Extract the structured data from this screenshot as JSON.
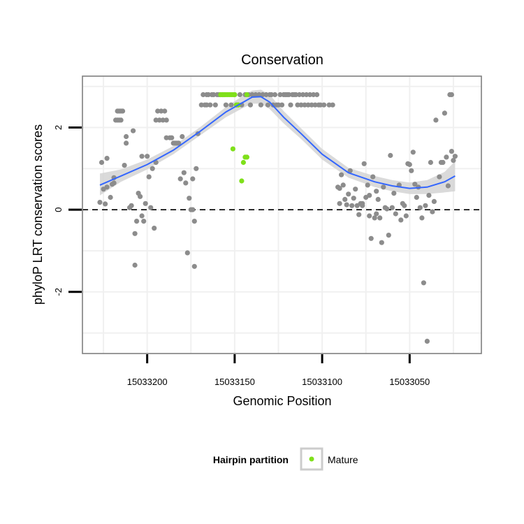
{
  "chart_data": {
    "type": "scatter",
    "title": "Conservation",
    "xlabel": "Genomic Position",
    "ylabel": "phyloP LRT conservation scores",
    "x_reversed": true,
    "xlim": [
      15033237,
      15033009
    ],
    "ylim": [
      -3.5,
      3.25
    ],
    "x_ticks": [
      15033200,
      15033150,
      15033100,
      15033050
    ],
    "y_ticks": [
      -2,
      0,
      2
    ],
    "reference_line": {
      "y": 0,
      "style": "dashed"
    },
    "grid": true,
    "legend": {
      "title": "Hairpin partition",
      "placement": "bottom",
      "entries": [
        "Mature"
      ]
    },
    "colors": {
      "other_points": "#8c8c8c",
      "mature_points": "#7fe01a",
      "smooth_line": "#3366ff",
      "confidence_band": "#d3d3d3",
      "panel_border": "#7f7f7f"
    },
    "series": [
      {
        "points": [
          [
            15033227,
            0.18
          ],
          [
            15033226,
            1.15
          ],
          [
            15033225,
            0.5
          ],
          [
            15033224,
            0.14
          ],
          [
            15033223,
            0.55
          ],
          [
            15033223,
            1.25
          ],
          [
            15033221,
            0.3
          ],
          [
            15033220,
            0.62
          ],
          [
            15033219,
            0.78
          ],
          [
            15033219,
            0.65
          ],
          [
            15033218,
            2.18
          ],
          [
            15033217,
            2.4
          ],
          [
            15033217,
            2.18
          ],
          [
            15033216,
            2.4
          ],
          [
            15033216,
            2.18
          ],
          [
            15033215,
            2.4
          ],
          [
            15033215,
            2.18
          ],
          [
            15033214,
            2.4
          ],
          [
            15033213,
            1.08
          ],
          [
            15033212,
            1.62
          ],
          [
            15033212,
            1.78
          ],
          [
            15033210,
            0.05
          ],
          [
            15033209,
            0.1
          ],
          [
            15033208,
            1.92
          ],
          [
            15033207,
            -1.35
          ],
          [
            15033207,
            -0.58
          ],
          [
            15033206,
            -0.28
          ],
          [
            15033205,
            0.4
          ],
          [
            15033204,
            0.32
          ],
          [
            15033203,
            -0.15
          ],
          [
            15033203,
            1.3
          ],
          [
            15033202,
            -0.28
          ],
          [
            15033201,
            0.15
          ],
          [
            15033200,
            1.3
          ],
          [
            15033199,
            0.8
          ],
          [
            15033198,
            0.05
          ],
          [
            15033197,
            1.0
          ],
          [
            15033196,
            -0.45
          ],
          [
            15033195,
            2.18
          ],
          [
            15033195,
            1.15
          ],
          [
            15033194,
            2.4
          ],
          [
            15033193,
            2.18
          ],
          [
            15033192,
            2.4
          ],
          [
            15033191,
            2.18
          ],
          [
            15033190,
            2.4
          ],
          [
            15033189,
            2.18
          ],
          [
            15033189,
            1.75
          ],
          [
            15033187,
            1.75
          ],
          [
            15033186,
            1.75
          ],
          [
            15033185,
            1.62
          ],
          [
            15033184,
            1.62
          ],
          [
            15033183,
            1.62
          ],
          [
            15033182,
            1.62
          ],
          [
            15033181,
            0.75
          ],
          [
            15033180,
            1.78
          ],
          [
            15033179,
            0.9
          ],
          [
            15033178,
            0.65
          ],
          [
            15033177,
            -1.05
          ],
          [
            15033176,
            0.28
          ],
          [
            15033175,
            0.0
          ],
          [
            15033174,
            0.75
          ],
          [
            15033174,
            0.0
          ],
          [
            15033173,
            -1.38
          ],
          [
            15033173,
            -0.28
          ],
          [
            15033172,
            1.0
          ],
          [
            15033171,
            1.85
          ],
          [
            15033169,
            2.55
          ],
          [
            15033168,
            2.8
          ],
          [
            15033167,
            2.55
          ],
          [
            15033166,
            2.8
          ],
          [
            15033166,
            2.55
          ],
          [
            15033165,
            2.8
          ],
          [
            15033164,
            2.55
          ],
          [
            15033163,
            2.8
          ],
          [
            15033162,
            2.8
          ],
          [
            15033161,
            2.55
          ],
          [
            15033160,
            2.8
          ],
          [
            15033159,
            2.8
          ],
          [
            15033158,
            2.8
          ],
          [
            15033157,
            2.8
          ],
          [
            15033156,
            2.8
          ],
          [
            15033155,
            2.55
          ],
          [
            15033152,
            2.55
          ],
          [
            15033150,
            2.8
          ],
          [
            15033149,
            2.55
          ],
          [
            15033148,
            2.55
          ],
          [
            15033147,
            2.8
          ],
          [
            15033146,
            2.55
          ],
          [
            15033144,
            2.8
          ],
          [
            15033142,
            2.8
          ],
          [
            15033141,
            2.55
          ],
          [
            15033140,
            2.8
          ],
          [
            15033138,
            2.8
          ],
          [
            15033136,
            2.8
          ],
          [
            15033135,
            2.55
          ],
          [
            15033134,
            2.8
          ],
          [
            15033132,
            2.8
          ],
          [
            15033131,
            2.55
          ],
          [
            15033130,
            2.8
          ],
          [
            15033129,
            2.8
          ],
          [
            15033128,
            2.55
          ],
          [
            15033127,
            2.8
          ],
          [
            15033126,
            2.55
          ],
          [
            15033125,
            2.55
          ],
          [
            15033124,
            2.8
          ],
          [
            15033123,
            2.55
          ],
          [
            15033122,
            2.8
          ],
          [
            15033121,
            2.8
          ],
          [
            15033120,
            2.8
          ],
          [
            15033119,
            2.8
          ],
          [
            15033118,
            2.55
          ],
          [
            15033117,
            2.8
          ],
          [
            15033116,
            2.8
          ],
          [
            15033115,
            2.8
          ],
          [
            15033114,
            2.55
          ],
          [
            15033113,
            2.8
          ],
          [
            15033112,
            2.55
          ],
          [
            15033111,
            2.8
          ],
          [
            15033110,
            2.55
          ],
          [
            15033109,
            2.8
          ],
          [
            15033108,
            2.55
          ],
          [
            15033107,
            2.8
          ],
          [
            15033106,
            2.55
          ],
          [
            15033105,
            2.8
          ],
          [
            15033104,
            2.55
          ],
          [
            15033103,
            2.8
          ],
          [
            15033102,
            2.55
          ],
          [
            15033101,
            2.55
          ],
          [
            15033099,
            2.55
          ],
          [
            15033096,
            2.55
          ],
          [
            15033094,
            2.55
          ],
          [
            15033091,
            0.55
          ],
          [
            15033090,
            0.15
          ],
          [
            15033090,
            0.52
          ],
          [
            15033089,
            0.85
          ],
          [
            15033088,
            0.6
          ],
          [
            15033087,
            0.25
          ],
          [
            15033086,
            0.12
          ],
          [
            15033085,
            0.38
          ],
          [
            15033084,
            0.95
          ],
          [
            15033083,
            0.1
          ],
          [
            15033082,
            0.28
          ],
          [
            15033081,
            0.5
          ],
          [
            15033080,
            0.1
          ],
          [
            15033079,
            -0.12
          ],
          [
            15033078,
            0.15
          ],
          [
            15033077,
            0.15
          ],
          [
            15033077,
            0.1
          ],
          [
            15033076,
            1.12
          ],
          [
            15033075,
            0.3
          ],
          [
            15033074,
            0.6
          ],
          [
            15033073,
            -0.15
          ],
          [
            15033073,
            0.35
          ],
          [
            15033072,
            -0.7
          ],
          [
            15033071,
            0.8
          ],
          [
            15033070,
            -0.2
          ],
          [
            15033069,
            0.45
          ],
          [
            15033069,
            -0.1
          ],
          [
            15033068,
            0.25
          ],
          [
            15033067,
            -0.2
          ],
          [
            15033066,
            -0.8
          ],
          [
            15033065,
            0.55
          ],
          [
            15033064,
            0.05
          ],
          [
            15033063,
            0.02
          ],
          [
            15033062,
            -0.62
          ],
          [
            15033061,
            1.32
          ],
          [
            15033060,
            0.05
          ],
          [
            15033059,
            0.4
          ],
          [
            15033058,
            -0.1
          ],
          [
            15033056,
            0.6
          ],
          [
            15033055,
            -0.25
          ],
          [
            15033054,
            0.15
          ],
          [
            15033053,
            0.1
          ],
          [
            15033052,
            -0.15
          ],
          [
            15033051,
            1.12
          ],
          [
            15033050,
            1.1
          ],
          [
            15033049,
            0.95
          ],
          [
            15033048,
            1.4
          ],
          [
            15033047,
            0.62
          ],
          [
            15033046,
            0.3
          ],
          [
            15033045,
            0.55
          ],
          [
            15033044,
            0.05
          ],
          [
            15033043,
            -0.2
          ],
          [
            15033042,
            -1.78
          ],
          [
            15033041,
            0.1
          ],
          [
            15033040,
            -3.2
          ],
          [
            15033039,
            0.35
          ],
          [
            15033038,
            1.15
          ],
          [
            15033037,
            -0.05
          ],
          [
            15033036,
            0.2
          ],
          [
            15033035,
            2.18
          ],
          [
            15033033,
            0.8
          ],
          [
            15033032,
            1.15
          ],
          [
            15033031,
            1.15
          ],
          [
            15033030,
            2.35
          ],
          [
            15033029,
            1.28
          ],
          [
            15033028,
            0.58
          ],
          [
            15033027,
            2.8
          ],
          [
            15033026,
            2.8
          ],
          [
            15033026,
            1.42
          ],
          [
            15033025,
            1.2
          ],
          [
            15033024,
            1.3
          ]
        ]
      },
      {
        "name": "Mature",
        "points": [
          [
            15033158,
            2.8
          ],
          [
            15033157,
            2.8
          ],
          [
            15033156,
            2.8
          ],
          [
            15033155,
            2.8
          ],
          [
            15033154,
            2.8
          ],
          [
            15033153,
            2.8
          ],
          [
            15033152,
            2.8
          ],
          [
            15033151,
            2.8
          ],
          [
            15033150,
            2.8
          ],
          [
            15033149,
            2.55
          ],
          [
            15033148,
            2.55
          ],
          [
            15033143,
            2.8
          ],
          [
            15033151,
            1.48
          ],
          [
            15033146,
            0.7
          ],
          [
            15033145,
            1.15
          ],
          [
            15033144,
            1.28
          ],
          [
            15033143,
            1.28
          ]
        ]
      }
    ],
    "smooth": {
      "x": [
        15033227,
        15033215,
        15033200,
        15033185,
        15033170,
        15033155,
        15033145,
        15033140,
        15033135,
        15033130,
        15033122,
        15033112,
        15033100,
        15033085,
        15033070,
        15033060,
        15033050,
        15033040,
        15033030,
        15033024
      ],
      "y": [
        0.6,
        0.82,
        1.1,
        1.45,
        1.9,
        2.38,
        2.62,
        2.74,
        2.75,
        2.62,
        2.25,
        1.85,
        1.35,
        0.9,
        0.68,
        0.58,
        0.52,
        0.55,
        0.68,
        0.82
      ],
      "lower": [
        0.35,
        0.68,
        0.98,
        1.35,
        1.8,
        2.25,
        2.48,
        2.58,
        2.58,
        2.45,
        2.1,
        1.72,
        1.22,
        0.78,
        0.55,
        0.45,
        0.38,
        0.38,
        0.42,
        0.45
      ],
      "upper": [
        0.88,
        0.98,
        1.22,
        1.55,
        2.0,
        2.5,
        2.78,
        2.9,
        2.92,
        2.8,
        2.4,
        1.98,
        1.48,
        1.02,
        0.82,
        0.72,
        0.66,
        0.72,
        0.92,
        1.18
      ]
    }
  }
}
